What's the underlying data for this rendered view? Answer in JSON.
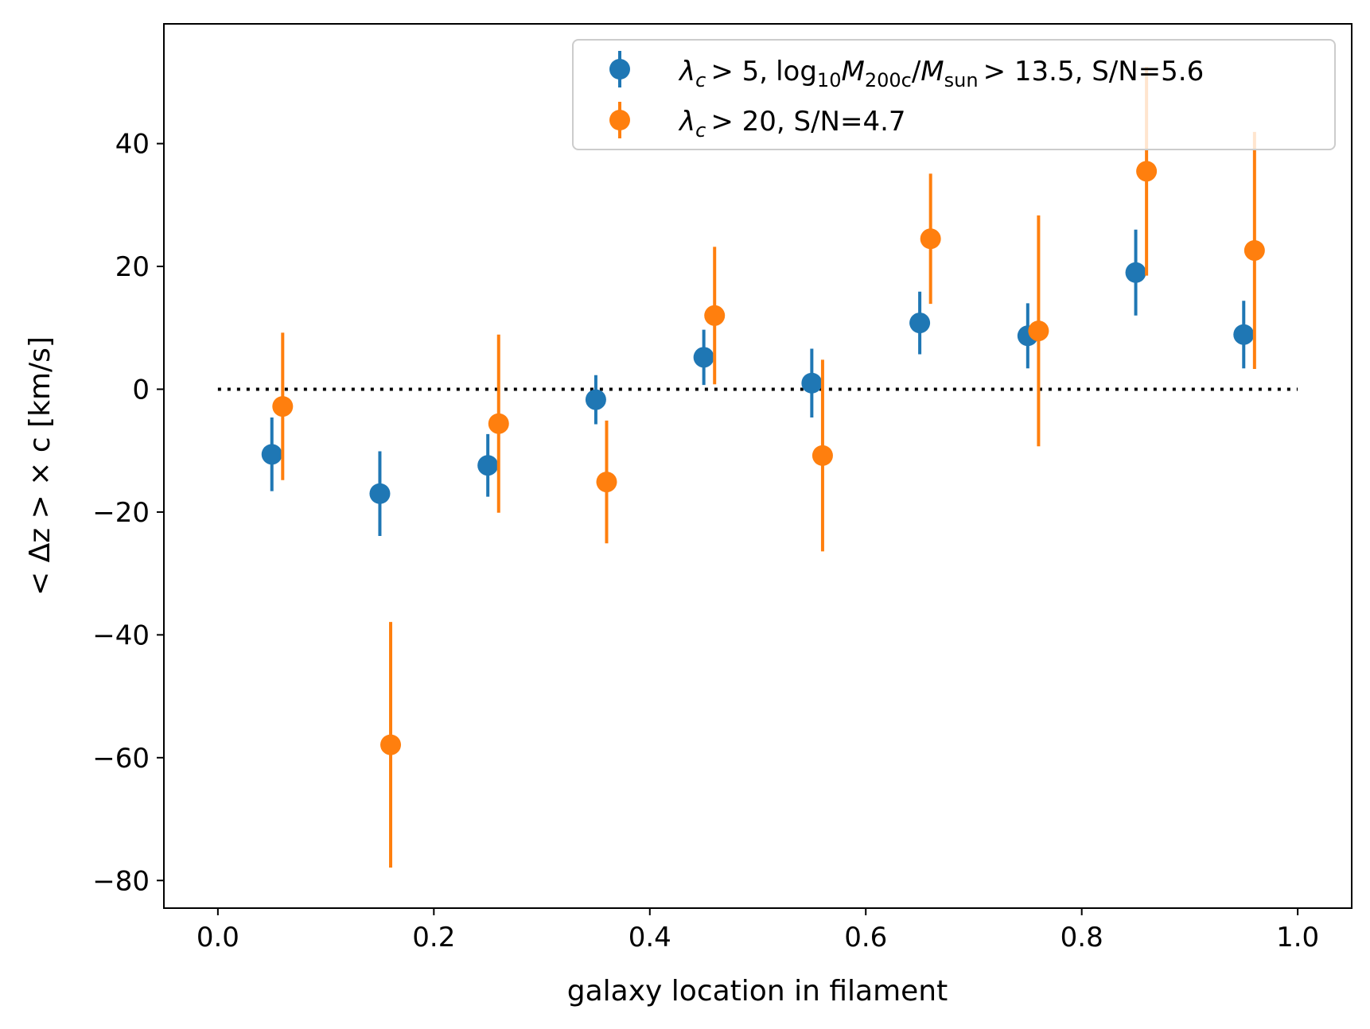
{
  "chart_data": {
    "type": "errorbar-scatter",
    "title": "",
    "xlabel": "galaxy location in filament",
    "ylabel": "< Δz > × c [km/s]",
    "xlim": [
      -0.05,
      1.05
    ],
    "ylim": [
      -84.5,
      59.5
    ],
    "x_ticks": [
      0.0,
      0.2,
      0.4,
      0.6,
      0.8,
      1.0
    ],
    "x_tick_labels": [
      "0.0",
      "0.2",
      "0.4",
      "0.6",
      "0.8",
      "1.0"
    ],
    "y_ticks": [
      -80,
      -60,
      -40,
      -20,
      0,
      20,
      40
    ],
    "y_tick_labels": [
      "−80",
      "−60",
      "−40",
      "−20",
      "0",
      "20",
      "40"
    ],
    "reference_line": {
      "y": 0,
      "x_range": [
        0.0,
        1.0
      ],
      "style": "dotted",
      "color": "#000000"
    },
    "legend_position": "upper-right",
    "series": [
      {
        "name": "λc > 5, log10 M200c/Msun > 13.5, S/N=5.6",
        "legend": {
          "lambda_sub": "c",
          "cut": "> 5,",
          "log": "log",
          "log_sub": "10",
          "mass": "M",
          "mass_sub": "200c",
          "slash": "/",
          "msun": "M",
          "msun_sub": "sun",
          "tail": "> 13.5, S/N=5.6"
        },
        "color": "#1f77b4",
        "x": [
          0.05,
          0.15,
          0.25,
          0.35,
          0.45,
          0.55,
          0.65,
          0.75,
          0.85,
          0.95
        ],
        "y": [
          -10.6,
          -17.0,
          -12.4,
          -1.7,
          5.2,
          1.0,
          10.8,
          8.7,
          19.0,
          8.9
        ],
        "yerr": [
          6.0,
          6.9,
          5.1,
          4.0,
          4.5,
          5.6,
          5.1,
          5.3,
          7.0,
          5.5
        ]
      },
      {
        "name": "λc > 20, S/N=4.7",
        "legend": {
          "lambda_sub": "c",
          "tail": "> 20, S/N=4.7"
        },
        "color": "#ff7f0e",
        "x": [
          0.06,
          0.16,
          0.26,
          0.36,
          0.46,
          0.56,
          0.66,
          0.76,
          0.86,
          0.96
        ],
        "y": [
          -2.8,
          -57.9,
          -5.6,
          -15.1,
          12.0,
          -10.8,
          24.5,
          9.5,
          35.5,
          22.6
        ],
        "yerr": [
          12.0,
          20.0,
          14.5,
          10.0,
          11.2,
          15.6,
          10.6,
          18.8,
          17.0,
          19.3
        ]
      }
    ]
  }
}
